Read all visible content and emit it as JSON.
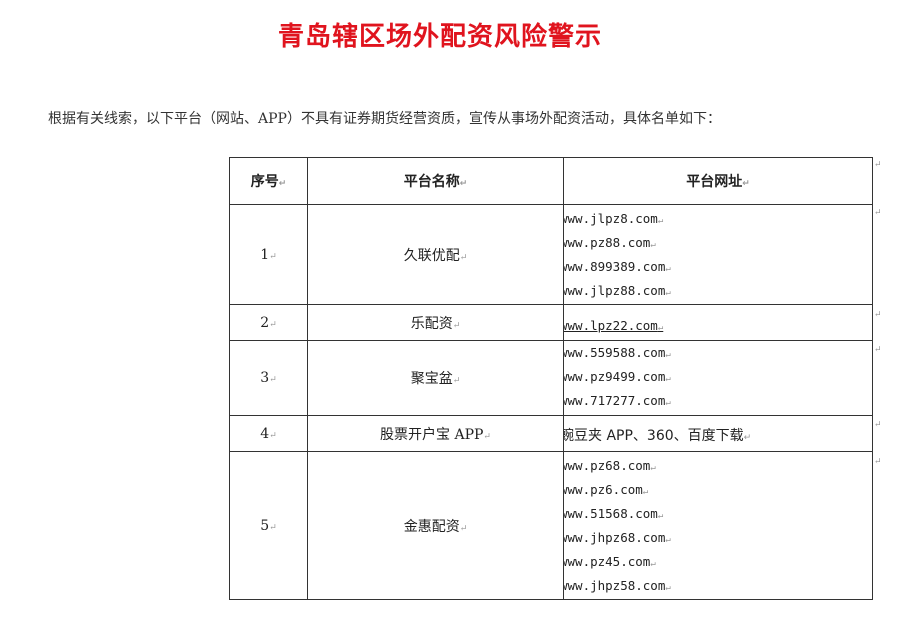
{
  "title": "青岛辖区场外配资风险警示",
  "intro": "根据有关线索，以下平台（网站、APP）不具有证券期货经营资质，宣传从事场外配资活动，具体名单如下：",
  "table": {
    "headers": [
      "序号",
      "平台名称",
      "平台网址"
    ],
    "rows": [
      {
        "no": "1",
        "name": "久联优配",
        "urls": [
          "www.jlpz8.com",
          "www.pz88.com",
          "www.899389.com",
          "www.jlpz88.com"
        ]
      },
      {
        "no": "2",
        "name": "乐配资",
        "urls": [
          "www.lpz22.com"
        ]
      },
      {
        "no": "3",
        "name": "聚宝盆",
        "urls": [
          "www.559588.com",
          "www.pz9499.com",
          "www.717277.com"
        ]
      },
      {
        "no": "4",
        "name": "股票开户宝 APP",
        "urls": [
          "豌豆夹 APP、360、百度下载"
        ]
      },
      {
        "no": "5",
        "name": "金惠配资",
        "urls": [
          "www.pz68.com",
          "www.pz6.com",
          "www.51568.com",
          "www.jhpz68.com",
          "www.pz45.com",
          "www.jhpz58.com"
        ]
      }
    ]
  },
  "colors": {
    "title": "#e0141e",
    "text": "#222222",
    "border": "#333333"
  }
}
